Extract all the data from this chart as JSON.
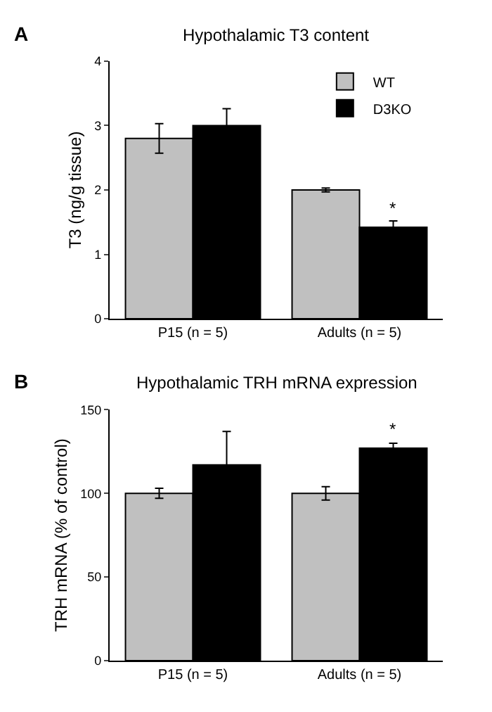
{
  "chart_data": [
    {
      "type": "bar",
      "title": "Hypothalamic T3 content",
      "ylabel": "T3 (ng/g tissue)",
      "categories": [
        "P15 (n = 5)",
        "Adults (n = 5)"
      ],
      "series": [
        {
          "name": "WT",
          "color": "#c0c0c0",
          "values": [
            2.8,
            2.0
          ],
          "errors": [
            0.23,
            0.03
          ]
        },
        {
          "name": "D3KO",
          "color": "#000000",
          "values": [
            3.0,
            1.42
          ],
          "errors": [
            0.26,
            0.1
          ]
        }
      ],
      "ylim": [
        0,
        4
      ],
      "yticks": [
        0,
        1,
        2,
        3,
        4
      ],
      "legend": "top right",
      "annotations": [
        "A",
        {
          "text": "*",
          "x": "Adults (n = 5)",
          "y": 1.52
        }
      ]
    },
    {
      "type": "bar",
      "title": "Hypothalamic TRH mRNA expression",
      "ylabel": "TRH mRNA (% of control)",
      "categories": [
        "P15 (n = 5)",
        "Adults (n = 5)"
      ],
      "series": [
        {
          "color": "#c0c0c0",
          "values": [
            100,
            100
          ],
          "errors": [
            3,
            4
          ]
        },
        {
          "color": "#000000",
          "values": [
            117,
            127
          ],
          "errors": [
            20,
            3
          ]
        }
      ],
      "ylim": [
        0,
        150
      ],
      "yticks": [
        0,
        50,
        100,
        150
      ],
      "legend": false,
      "annotations": [
        "B",
        {
          "text": "*",
          "x": "Adults (n = 5)",
          "y": 131
        }
      ]
    }
  ]
}
